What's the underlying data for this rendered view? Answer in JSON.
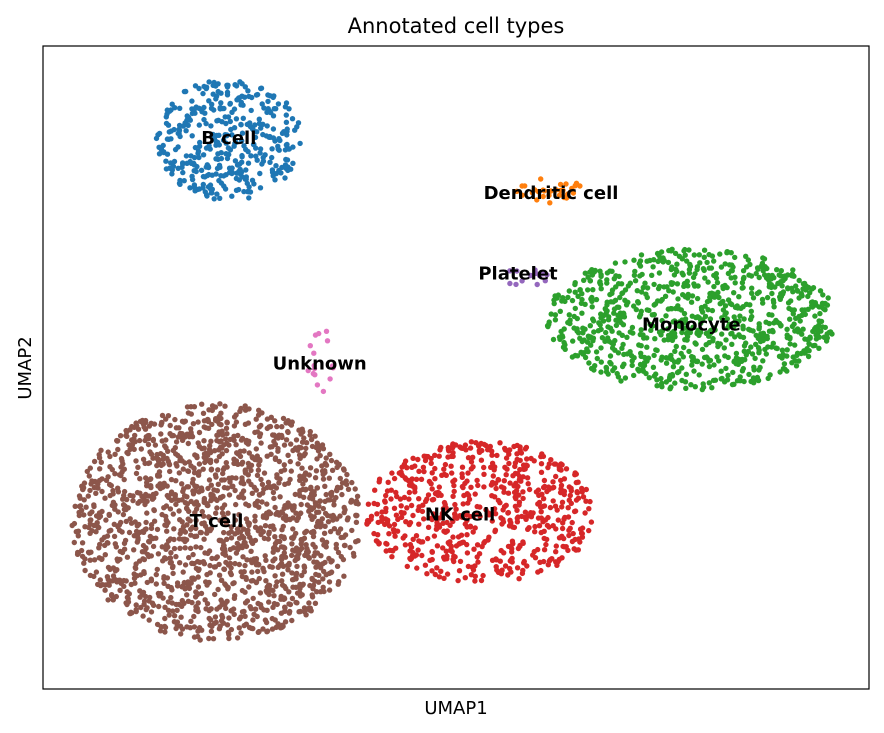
{
  "chart_data": {
    "type": "scatter",
    "title": "Annotated cell types",
    "xlabel": "UMAP1",
    "ylabel": "UMAP2",
    "xlim": [
      0,
      100
    ],
    "ylim": [
      0,
      100
    ],
    "grid": false,
    "ticks": false,
    "legend": "on data",
    "series": [
      {
        "name": "B cell",
        "color": "#1f77b4",
        "cx": 22.5,
        "cy": 85.5,
        "rx": 8.8,
        "ry": 9.5,
        "n": 380,
        "label_x": 22.5,
        "label_y": 85.5
      },
      {
        "name": "Dendritic cell",
        "color": "#ff7f0e",
        "cx": 61.5,
        "cy": 77.5,
        "rx": 4.5,
        "ry": 2.0,
        "n": 30,
        "label_x": 61.5,
        "label_y": 77.0
      },
      {
        "name": "Monocyte",
        "color": "#2ca02c",
        "cx": 78.5,
        "cy": 57.5,
        "rx": 17.5,
        "ry": 11.0,
        "n": 900,
        "label_x": 78.5,
        "label_y": 56.5
      },
      {
        "name": "NK cell",
        "color": "#d62728",
        "cx": 53.0,
        "cy": 27.5,
        "rx": 14.0,
        "ry": 11.0,
        "n": 650,
        "label_x": 50.5,
        "label_y": 27.0
      },
      {
        "name": "Platelet",
        "color": "#9467bd",
        "cx": 58.5,
        "cy": 64.5,
        "rx": 3.0,
        "ry": 2.0,
        "n": 14,
        "label_x": 57.5,
        "label_y": 64.5
      },
      {
        "name": "T cell",
        "color": "#8c564b",
        "cx": 21.0,
        "cy": 26.0,
        "rx": 17.5,
        "ry": 18.5,
        "n": 1600,
        "label_x": 21.0,
        "label_y": 26.0
      },
      {
        "name": "Unknown",
        "color": "#e377c2",
        "cx": 33.5,
        "cy": 50.5,
        "rx": 2.5,
        "ry": 5.5,
        "n": 16,
        "label_x": 33.5,
        "label_y": 50.5
      }
    ]
  }
}
